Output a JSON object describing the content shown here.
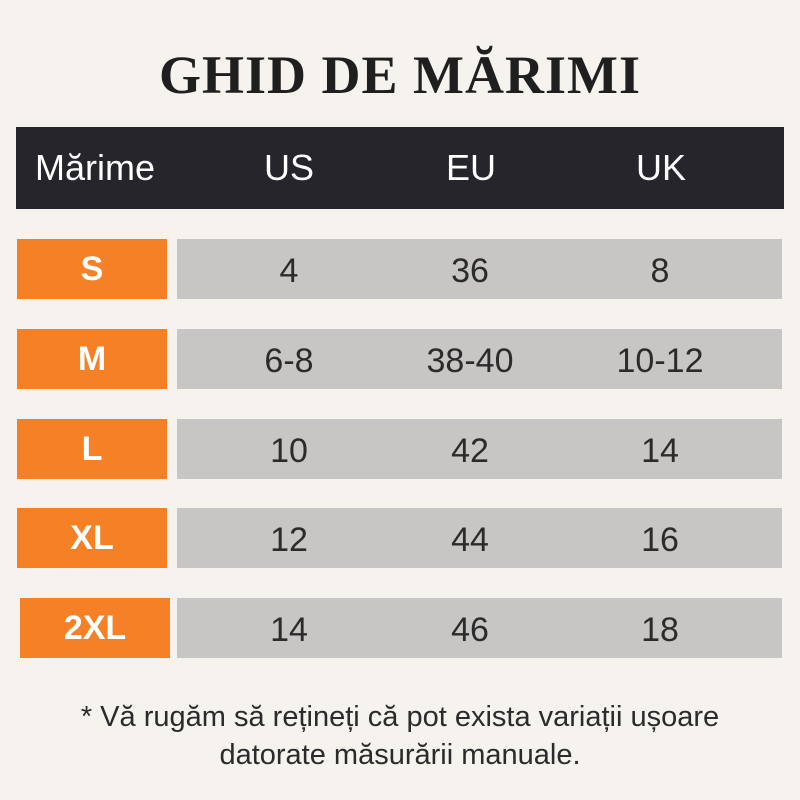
{
  "title": "GHID DE MĂRIMI",
  "header": {
    "size": "Mărime",
    "us": "US",
    "eu": "EU",
    "uk": "UK"
  },
  "rows": [
    {
      "size": "S",
      "us": "4",
      "eu": "36",
      "uk": "8"
    },
    {
      "size": "M",
      "us": "6-8",
      "eu": "38-40",
      "uk": "10-12"
    },
    {
      "size": "L",
      "us": "10",
      "eu": "42",
      "uk": "14"
    },
    {
      "size": "XL",
      "us": "12",
      "eu": "44",
      "uk": "16"
    },
    {
      "size": "2XL",
      "us": "14",
      "eu": "46",
      "uk": "18"
    }
  ],
  "note": {
    "line1": "* Vă rugăm să rețineți că pot exista variații ușoare",
    "line2": "datorate măsurării manuale."
  },
  "colors": {
    "background": "#f6f3ee",
    "header_bg": "#25252b",
    "size_accent": "#f58025",
    "row_bg": "#c8c6c4"
  }
}
